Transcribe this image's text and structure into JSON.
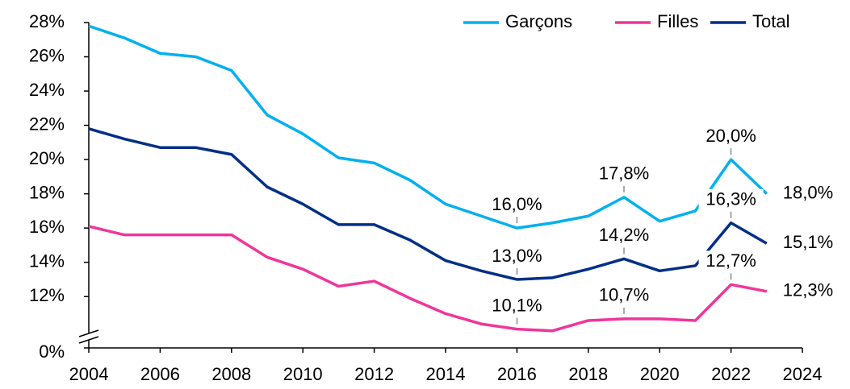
{
  "chart_data": {
    "type": "line",
    "x": [
      2004,
      2005,
      2006,
      2007,
      2008,
      2009,
      2010,
      2011,
      2012,
      2013,
      2014,
      2015,
      2016,
      2017,
      2018,
      2019,
      2020,
      2021,
      2022,
      2023
    ],
    "series": [
      {
        "name": "Garçons",
        "color": "#00b0f0",
        "values": [
          27.8,
          27.1,
          26.2,
          26.0,
          25.2,
          22.6,
          21.5,
          20.1,
          19.8,
          18.8,
          17.4,
          16.7,
          16.0,
          16.3,
          16.7,
          17.8,
          16.4,
          17.0,
          20.0,
          18.0
        ],
        "value_labels": [
          null,
          null,
          null,
          null,
          null,
          null,
          null,
          null,
          null,
          null,
          null,
          null,
          "16,0%",
          null,
          null,
          "17,8%",
          null,
          null,
          "20,0%",
          "18,0%"
        ]
      },
      {
        "name": "Filles",
        "color": "#f0359a",
        "values": [
          16.1,
          15.6,
          15.6,
          15.6,
          15.6,
          14.3,
          13.6,
          12.6,
          12.9,
          11.9,
          11.0,
          10.4,
          10.1,
          10.0,
          10.6,
          10.7,
          10.7,
          10.6,
          12.7,
          12.3
        ],
        "value_labels": [
          null,
          null,
          null,
          null,
          null,
          null,
          null,
          null,
          null,
          null,
          null,
          null,
          "10,1%",
          null,
          null,
          "10,7%",
          null,
          null,
          "12,7%",
          "12,3%"
        ]
      },
      {
        "name": "Total",
        "color": "#002f87",
        "values": [
          21.8,
          21.2,
          20.7,
          20.7,
          20.3,
          18.4,
          17.4,
          16.2,
          16.2,
          15.3,
          14.1,
          13.5,
          13.0,
          13.1,
          13.6,
          14.2,
          13.5,
          13.8,
          16.3,
          15.1
        ],
        "value_labels": [
          null,
          null,
          null,
          null,
          null,
          null,
          null,
          null,
          null,
          null,
          null,
          null,
          "13,0%",
          null,
          null,
          "14,2%",
          null,
          null,
          "16,3%",
          "15,1%"
        ]
      }
    ],
    "xlim": [
      2004,
      2024
    ],
    "xticks": [
      2004,
      2006,
      2008,
      2010,
      2012,
      2014,
      2016,
      2018,
      2020,
      2022,
      2024
    ],
    "ylim": [
      9,
      28
    ],
    "yticks": [
      {
        "value": 0,
        "label": "0%"
      },
      {
        "value": 12,
        "label": "12%"
      },
      {
        "value": 14,
        "label": "14%"
      },
      {
        "value": 16,
        "label": "16%"
      },
      {
        "value": 18,
        "label": "18%"
      },
      {
        "value": 20,
        "label": "20%"
      },
      {
        "value": 22,
        "label": "22%"
      },
      {
        "value": 24,
        "label": "24%"
      },
      {
        "value": 26,
        "label": "26%"
      },
      {
        "value": 28,
        "label": "28%"
      }
    ],
    "axis_break": true,
    "legend": "top-right"
  }
}
